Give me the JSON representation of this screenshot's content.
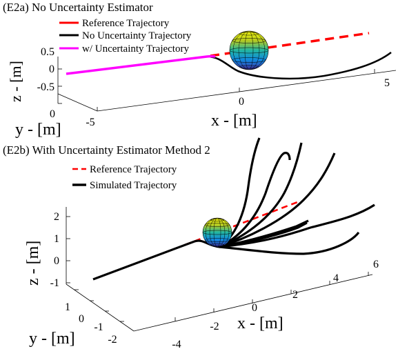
{
  "chart_data": [
    {
      "id": "E2a",
      "type": "line",
      "title": "(E2a) No Uncertainty Estimator",
      "legend": {
        "placement": "top-left",
        "entries": [
          {
            "label": "Reference Trajectory",
            "color": "#ff0000",
            "style": "solid"
          },
          {
            "label": "No Uncertainty Trajectory",
            "color": "#000000",
            "style": "solid"
          },
          {
            "label": "w/ Uncertainty Trajectory",
            "color": "#ff00ff",
            "style": "solid"
          }
        ]
      },
      "axes": {
        "x": {
          "label": "x - [m]",
          "ticks": [
            "0",
            "5"
          ]
        },
        "y": {
          "label": "y - [m]",
          "ticks": [
            "0",
            "-5"
          ]
        },
        "z": {
          "label": "z - [m]",
          "ticks": [
            "0.5",
            "0",
            "-0.5"
          ]
        }
      },
      "series": [
        {
          "name": "Reference Trajectory",
          "color": "#ff0000",
          "dashed": true
        },
        {
          "name": "No Uncertainty Trajectory",
          "color": "#000000"
        },
        {
          "name": "w/ Uncertainty Trajectory",
          "color": "#ff00ff"
        }
      ],
      "obstacle": {
        "shape": "sphere",
        "colormap": "parula"
      }
    },
    {
      "id": "E2b",
      "type": "line",
      "title": "(E2b) With Uncertainty Estimator Method 2",
      "legend": {
        "placement": "top-left",
        "entries": [
          {
            "label": "Reference Trajectory",
            "color": "#ff0000",
            "style": "dashed"
          },
          {
            "label": "Simulated Trajectory",
            "color": "#000000",
            "style": "solid"
          }
        ]
      },
      "axes": {
        "x": {
          "label": "x - [m]",
          "ticks": [
            "-4",
            "-2",
            "0",
            "2",
            "4",
            "6"
          ]
        },
        "y": {
          "label": "y - [m]",
          "ticks": [
            "1",
            "0",
            "-1",
            "-2"
          ]
        },
        "z": {
          "label": "z - [m]",
          "ticks": [
            "2",
            "1",
            "0",
            "-1"
          ]
        }
      },
      "series": [
        {
          "name": "Reference Trajectory",
          "color": "#ff0000",
          "dashed": true
        },
        {
          "name": "Simulated Trajectory",
          "color": "#000000",
          "count": 9
        }
      ],
      "obstacle": {
        "shape": "sphere",
        "colormap": "parula"
      }
    }
  ]
}
